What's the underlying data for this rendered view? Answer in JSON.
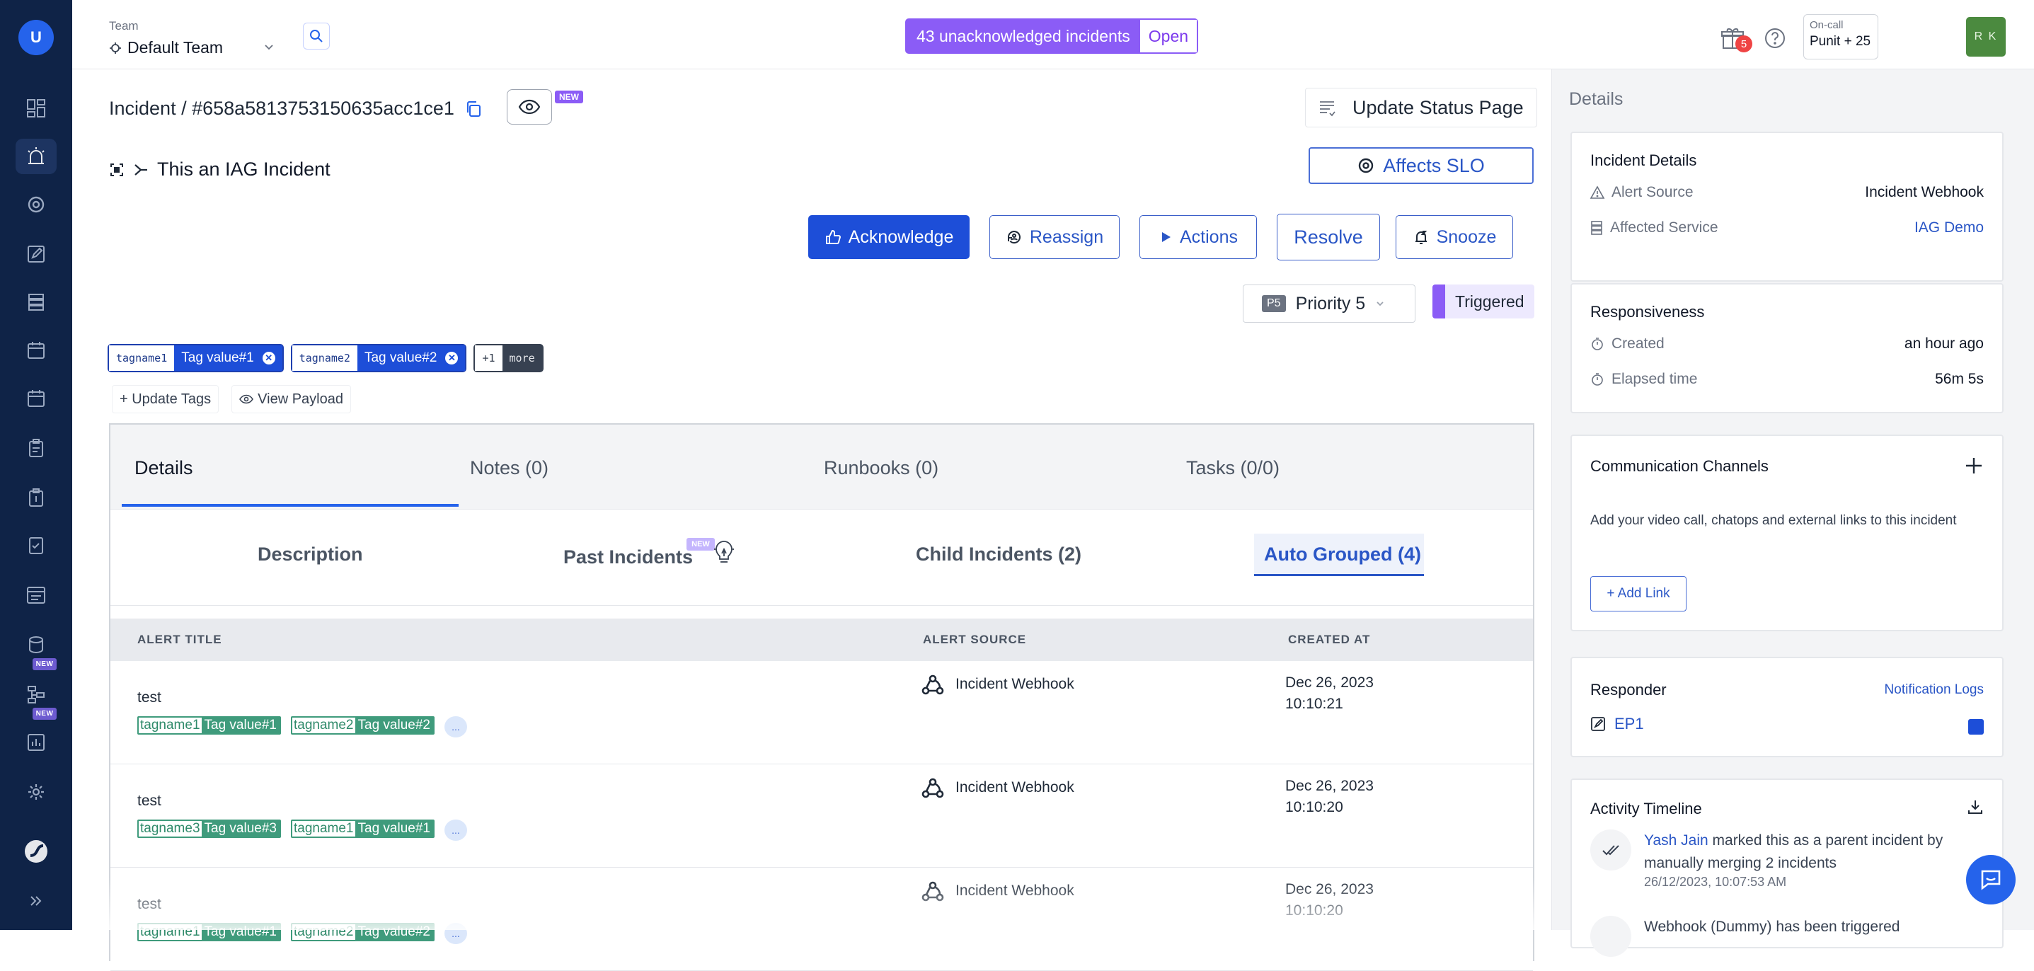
{
  "nav": {
    "avatar_initial": "U",
    "items": [
      {
        "icon": "dashboard-icon"
      },
      {
        "icon": "incidents-alarm-icon",
        "active": true
      },
      {
        "icon": "slo-target-icon"
      },
      {
        "icon": "postmortem-edit-icon"
      },
      {
        "icon": "services-stack-icon"
      },
      {
        "icon": "schedules-calendar-icon"
      },
      {
        "icon": "calendar-icon"
      },
      {
        "icon": "runbook-clipboard-icon"
      },
      {
        "icon": "clipboard-icon"
      },
      {
        "icon": "checklist-icon"
      },
      {
        "icon": "status-page-icon"
      },
      {
        "icon": "catalog-icon",
        "badge": "NEW"
      },
      {
        "icon": "workflow-icon",
        "badge": "NEW"
      },
      {
        "icon": "analytics-chart-icon"
      },
      {
        "icon": "settings-gear-icon"
      }
    ],
    "expand_icon": "double-chevron-right-icon"
  },
  "header": {
    "team_label": "Team",
    "team_name": "Default Team",
    "unack_count_text": "43 unacknowledged incidents",
    "unack_open_label": "Open",
    "gift_badge": "5",
    "oncall_label": "On-call",
    "oncall_value": "Punit + 25",
    "user_initials": "R K"
  },
  "incident": {
    "breadcrumb": "Incident / #658a5813753150635acc1ce1",
    "eye_badge": "NEW",
    "update_status_page": "Update Status Page",
    "title": "This an IAG Incident",
    "affects_slo": "Affects SLO",
    "buttons": {
      "acknowledge": "Acknowledge",
      "reassign": "Reassign",
      "actions": "Actions",
      "resolve": "Resolve",
      "snooze": "Snooze"
    },
    "priority_badge": "P5",
    "priority_label": "Priority 5",
    "status": "Triggered",
    "tags": [
      {
        "key": "tagname1",
        "value": "Tag value#1"
      },
      {
        "key": "tagname2",
        "value": "Tag value#2"
      }
    ],
    "more_tags": {
      "count": "+1",
      "label": "more"
    },
    "update_tags": "+ Update Tags",
    "view_payload": "View Payload"
  },
  "tabs": {
    "main": [
      "Details",
      "Notes (0)",
      "Runbooks (0)",
      "Tasks (0/0)"
    ],
    "sub": [
      "Description",
      "Past Incidents",
      "Child Incidents (2)",
      "Auto Grouped (4)"
    ],
    "past_new": "NEW"
  },
  "table": {
    "headers": [
      "ALERT TITLE",
      "ALERT SOURCE",
      "CREATED AT"
    ],
    "rows": [
      {
        "title": "test",
        "tags": [
          {
            "key": "tagname1",
            "value": "Tag value#1"
          },
          {
            "key": "tagname2",
            "value": "Tag value#2"
          }
        ],
        "more": "...",
        "source": "Incident Webhook",
        "date": "Dec 26, 2023",
        "time": "10:10:21"
      },
      {
        "title": "test",
        "tags": [
          {
            "key": "tagname3",
            "value": "Tag value#3"
          },
          {
            "key": "tagname1",
            "value": "Tag value#1"
          }
        ],
        "more": "...",
        "source": "Incident Webhook",
        "date": "Dec 26, 2023",
        "time": "10:10:20"
      },
      {
        "title": "test",
        "tags": [
          {
            "key": "tagname1",
            "value": "Tag value#1"
          },
          {
            "key": "tagname2",
            "value": "Tag value#2"
          }
        ],
        "more": "...",
        "source": "Incident Webhook",
        "date": "Dec 26, 2023",
        "time": "10:10:20"
      }
    ]
  },
  "details": {
    "panel_title": "Details",
    "incident_details": {
      "heading": "Incident Details",
      "alert_source_label": "Alert Source",
      "alert_source_value": "Incident Webhook",
      "affected_service_label": "Affected Service",
      "affected_service_value": "IAG Demo"
    },
    "responsiveness": {
      "heading": "Responsiveness",
      "created_label": "Created",
      "created_value": "an hour ago",
      "elapsed_label": "Elapsed time",
      "elapsed_value": "56m 5s"
    },
    "communication": {
      "heading": "Communication Channels",
      "text": "Add your video call, chatops and external links to this incident",
      "add_link": "+ Add Link"
    },
    "responder": {
      "heading": "Responder",
      "notification_logs": "Notification Logs",
      "name": "EP1"
    },
    "timeline": {
      "heading": "Activity Timeline",
      "items": [
        {
          "name": "Yash Jain",
          "text": "marked this as a parent incident by manually merging 2 incidents",
          "time": "26/12/2023, 10:07:53 AM"
        },
        {
          "name": "",
          "text": "Webhook (Dummy) has been triggered",
          "time": ""
        }
      ]
    }
  },
  "colors": {
    "nav_bg": "#0f2347",
    "primary": "#1d4ed8",
    "purple": "#8b5cf6",
    "tag_green": "#3f9b7c"
  }
}
